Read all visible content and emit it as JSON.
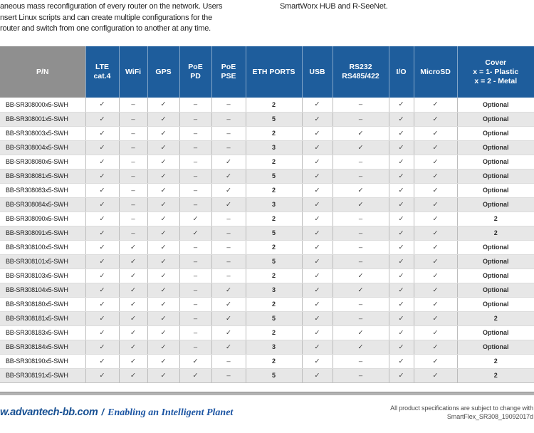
{
  "intro": {
    "left_lines": [
      "aneous mass reconfiguration of every router on the network. Users",
      "nsert Linux scripts and can create multiple configurations for the",
      "router and switch from one configuration to another at any time."
    ],
    "right_line": "SmartWorx HUB and R-SeeNet."
  },
  "table": {
    "symbols": {
      "check": "✓",
      "dash": "–"
    },
    "columns": [
      {
        "key": "pn",
        "label": "P/N"
      },
      {
        "key": "lte",
        "label": "LTE\ncat.4"
      },
      {
        "key": "wifi",
        "label": "WiFi"
      },
      {
        "key": "gps",
        "label": "GPS"
      },
      {
        "key": "poe_pd",
        "label": "PoE\nPD"
      },
      {
        "key": "poe_pse",
        "label": "PoE\nPSE"
      },
      {
        "key": "eth",
        "label": "ETH PORTS"
      },
      {
        "key": "usb",
        "label": "USB"
      },
      {
        "key": "rs232",
        "label": "RS232\nRS485/422"
      },
      {
        "key": "io",
        "label": "I/O"
      },
      {
        "key": "microsd",
        "label": "MicroSD"
      },
      {
        "key": "cover",
        "label": "Cover\nx = 1- Plastic\nx = 2 - Metal"
      }
    ],
    "rows": [
      [
        "BB-SR308000x5-SWH",
        "✓",
        "–",
        "✓",
        "–",
        "–",
        "2",
        "✓",
        "–",
        "✓",
        "✓",
        "Optional"
      ],
      [
        "BB-SR308001x5-SWH",
        "✓",
        "–",
        "✓",
        "–",
        "–",
        "5",
        "✓",
        "–",
        "✓",
        "✓",
        "Optional"
      ],
      [
        "BB-SR308003x5-SWH",
        "✓",
        "–",
        "✓",
        "–",
        "–",
        "2",
        "✓",
        "✓",
        "✓",
        "✓",
        "Optional"
      ],
      [
        "BB-SR308004x5-SWH",
        "✓",
        "–",
        "✓",
        "–",
        "–",
        "3",
        "✓",
        "✓",
        "✓",
        "✓",
        "Optional"
      ],
      [
        "BB-SR308080x5-SWH",
        "✓",
        "–",
        "✓",
        "–",
        "✓",
        "2",
        "✓",
        "–",
        "✓",
        "✓",
        "Optional"
      ],
      [
        "BB-SR308081x5-SWH",
        "✓",
        "–",
        "✓",
        "–",
        "✓",
        "5",
        "✓",
        "–",
        "✓",
        "✓",
        "Optional"
      ],
      [
        "BB-SR308083x5-SWH",
        "✓",
        "–",
        "✓",
        "–",
        "✓",
        "2",
        "✓",
        "✓",
        "✓",
        "✓",
        "Optional"
      ],
      [
        "BB-SR308084x5-SWH",
        "✓",
        "–",
        "✓",
        "–",
        "✓",
        "3",
        "✓",
        "✓",
        "✓",
        "✓",
        "Optional"
      ],
      [
        "BB-SR308090x5-SWH",
        "✓",
        "–",
        "✓",
        "✓",
        "–",
        "2",
        "✓",
        "–",
        "✓",
        "✓",
        "2"
      ],
      [
        "BB-SR308091x5-SWH",
        "✓",
        "–",
        "✓",
        "✓",
        "–",
        "5",
        "✓",
        "–",
        "✓",
        "✓",
        "2"
      ],
      [
        "BB-SR308100x5-SWH",
        "✓",
        "✓",
        "✓",
        "–",
        "–",
        "2",
        "✓",
        "–",
        "✓",
        "✓",
        "Optional"
      ],
      [
        "BB-SR308101x5-SWH",
        "✓",
        "✓",
        "✓",
        "–",
        "–",
        "5",
        "✓",
        "–",
        "✓",
        "✓",
        "Optional"
      ],
      [
        "BB-SR308103x5-SWH",
        "✓",
        "✓",
        "✓",
        "–",
        "–",
        "2",
        "✓",
        "✓",
        "✓",
        "✓",
        "Optional"
      ],
      [
        "BB-SR308104x5-SWH",
        "✓",
        "✓",
        "✓",
        "–",
        "✓",
        "3",
        "✓",
        "✓",
        "✓",
        "✓",
        "Optional"
      ],
      [
        "BB-SR308180x5-SWH",
        "✓",
        "✓",
        "✓",
        "–",
        "✓",
        "2",
        "✓",
        "–",
        "✓",
        "✓",
        "Optional"
      ],
      [
        "BB-SR308181x5-SWH",
        "✓",
        "✓",
        "✓",
        "–",
        "✓",
        "5",
        "✓",
        "–",
        "✓",
        "✓",
        "2"
      ],
      [
        "BB-SR308183x5-SWH",
        "✓",
        "✓",
        "✓",
        "–",
        "✓",
        "2",
        "✓",
        "✓",
        "✓",
        "✓",
        "Optional"
      ],
      [
        "BB-SR308184x5-SWH",
        "✓",
        "✓",
        "✓",
        "–",
        "✓",
        "3",
        "✓",
        "✓",
        "✓",
        "✓",
        "Optional"
      ],
      [
        "BB-SR308190x5-SWH",
        "✓",
        "✓",
        "✓",
        "✓",
        "–",
        "2",
        "✓",
        "–",
        "✓",
        "✓",
        "2"
      ],
      [
        "BB-SR308191x5-SWH",
        "✓",
        "✓",
        "✓",
        "✓",
        "–",
        "5",
        "✓",
        "–",
        "✓",
        "✓",
        "2"
      ]
    ]
  },
  "footer": {
    "website": "w.advantech-bb.com",
    "separator": "/",
    "tagline": "Enabling an Intelligent Planet",
    "note_line1": "All product specifications are subject to change with",
    "note_line2": "SmartFlex_SR308_19092017d"
  },
  "colors": {
    "header_blue": "#1e5d9c",
    "header_gray": "#8f8f8f",
    "row_alt_gray": "#e7e7e7",
    "footer_blue": "#164f92",
    "divider_gray": "#b3b3b3"
  }
}
